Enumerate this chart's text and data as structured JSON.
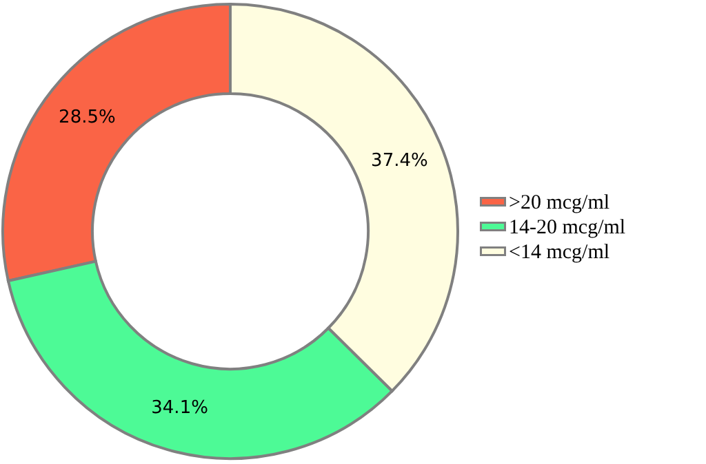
{
  "chart_data": {
    "type": "donut",
    "categories": [
      ">20 mcg/ml",
      "14-20 mcg/ml",
      "<14 mcg/ml"
    ],
    "values": [
      28.5,
      34.1,
      37.4
    ],
    "colors": [
      "#fa6446",
      "#4dfa96",
      "#fffde0"
    ],
    "value_labels": [
      "28.5%",
      "34.1%",
      "37.4%"
    ],
    "legend": "right"
  }
}
